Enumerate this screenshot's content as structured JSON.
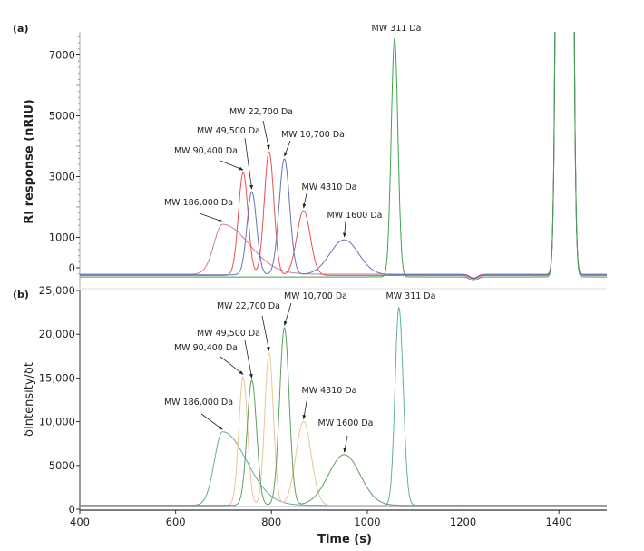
{
  "chart_data": [
    {
      "panel_label": "(a)",
      "type": "line",
      "ylabel": "RI response (nRIU)",
      "xlabel": "",
      "xlim": [
        400,
        1500
      ],
      "ylim": [
        -500,
        7800
      ],
      "yticks": [
        0,
        1000,
        3000,
        5000,
        7000
      ],
      "ytick_labels": [
        "0",
        "1000",
        "3000",
        "5000",
        "7000"
      ],
      "grid": false,
      "common_peaks": [
        {
          "t": 1412,
          "h": 200000,
          "sl": 8,
          "sr": 8
        },
        {
          "t": 1222,
          "h": -120,
          "sl": 8,
          "sr": 8
        }
      ],
      "series": [
        {
          "color": "#c77ba9",
          "baseline": -210,
          "peaks": [
            {
              "t": 698,
              "h": 1640,
              "sl": 18,
              "sr": 55
            }
          ]
        },
        {
          "color": "#e8504f",
          "baseline": -250,
          "peaks": [
            {
              "t": 741,
              "h": 3380,
              "sl": 10,
              "sr": 10
            },
            {
              "t": 795,
              "h": 4070,
              "sl": 10,
              "sr": 10
            },
            {
              "t": 867,
              "h": 2130,
              "sl": 14,
              "sr": 14
            }
          ]
        },
        {
          "color": "#6672b8",
          "baseline": -230,
          "peaks": [
            {
              "t": 759,
              "h": 2730,
              "sl": 10,
              "sr": 10
            },
            {
              "t": 827,
              "h": 3810,
              "sl": 11,
              "sr": 11
            },
            {
              "t": 952,
              "h": 1150,
              "sl": 30,
              "sr": 30
            }
          ]
        },
        {
          "color": "#3fa34d",
          "baseline": -300,
          "peaks": [
            {
              "t": 1057,
              "h": 7850,
              "sl": 7,
              "sr": 7
            }
          ]
        }
      ],
      "annotations": [
        {
          "text": "MW 186,000 Da",
          "t": 698,
          "value": 1430
        },
        {
          "text": "MW 90,400 Da",
          "t": 741,
          "value": 3130
        },
        {
          "text": "MW 49,500 Da",
          "t": 759,
          "value": 2500
        },
        {
          "text": "MW 22,700 Da",
          "t": 795,
          "value": 3820
        },
        {
          "text": "MW 10,700 Da",
          "t": 827,
          "value": 3580
        },
        {
          "text": "MW 4310 Da",
          "t": 867,
          "value": 1880
        },
        {
          "text": "MW 1600 Da",
          "t": 952,
          "value": 925
        },
        {
          "text": "MW 311 Da",
          "t": 1057,
          "value": 7550
        }
      ]
    },
    {
      "panel_label": "(b)",
      "type": "line",
      "ylabel": "δIntensity/δt",
      "xlabel": "Time (s)",
      "xlim": [
        400,
        1500
      ],
      "ylim": [
        0,
        25000
      ],
      "xticks": [
        400,
        600,
        800,
        1000,
        1200,
        1400
      ],
      "xtick_labels": [
        "400",
        "600",
        "800",
        "1000",
        "1200",
        "1400"
      ],
      "yticks": [
        0,
        5000,
        10000,
        15000,
        20000,
        25000
      ],
      "ytick_labels": [
        "0",
        "5000",
        "10,000",
        "15,000",
        "20,000",
        "25,000"
      ],
      "grid": false,
      "series": [
        {
          "color": "#5fae9f",
          "baseline": 450,
          "peaks": [
            {
              "t": 698,
              "h": 8400,
              "sl": 17,
              "sr": 50
            },
            {
              "t": 1066,
              "h": 22600,
              "sl": 8,
              "sr": 9
            }
          ]
        },
        {
          "color": "#ebc594",
          "baseline": 430,
          "peaks": [
            {
              "t": 741,
              "h": 14700,
              "sl": 9,
              "sr": 9
            },
            {
              "t": 795,
              "h": 17400,
              "sl": 9,
              "sr": 9
            },
            {
              "t": 867,
              "h": 9600,
              "sl": 16,
              "sr": 16
            }
          ]
        },
        {
          "color": "#5e9e5e",
          "baseline": 440,
          "peaks": [
            {
              "t": 759,
              "h": 14300,
              "sl": 10,
              "sr": 10
            },
            {
              "t": 827,
              "h": 20300,
              "sl": 10,
              "sr": 10
            },
            {
              "t": 952,
              "h": 5800,
              "sl": 33,
              "sr": 33
            }
          ]
        },
        {
          "color": "#8c8cc8",
          "baseline": 300,
          "peaks": []
        }
      ],
      "annotations": [
        {
          "text": "MW 186,000 Da",
          "t": 698,
          "value": 8800
        },
        {
          "text": "MW 90,400 Da",
          "t": 741,
          "value": 15100
        },
        {
          "text": "MW 49,500 Da",
          "t": 759,
          "value": 14700
        },
        {
          "text": "MW 22,700 Da",
          "t": 795,
          "value": 17800
        },
        {
          "text": "MW 10,700 Da",
          "t": 827,
          "value": 20700
        },
        {
          "text": "MW 4310 Da",
          "t": 867,
          "value": 10000
        },
        {
          "text": "MW 1600 Da",
          "t": 952,
          "value": 6200
        },
        {
          "text": "MW 311 Da",
          "t": 1066,
          "value": 23000
        }
      ]
    }
  ]
}
